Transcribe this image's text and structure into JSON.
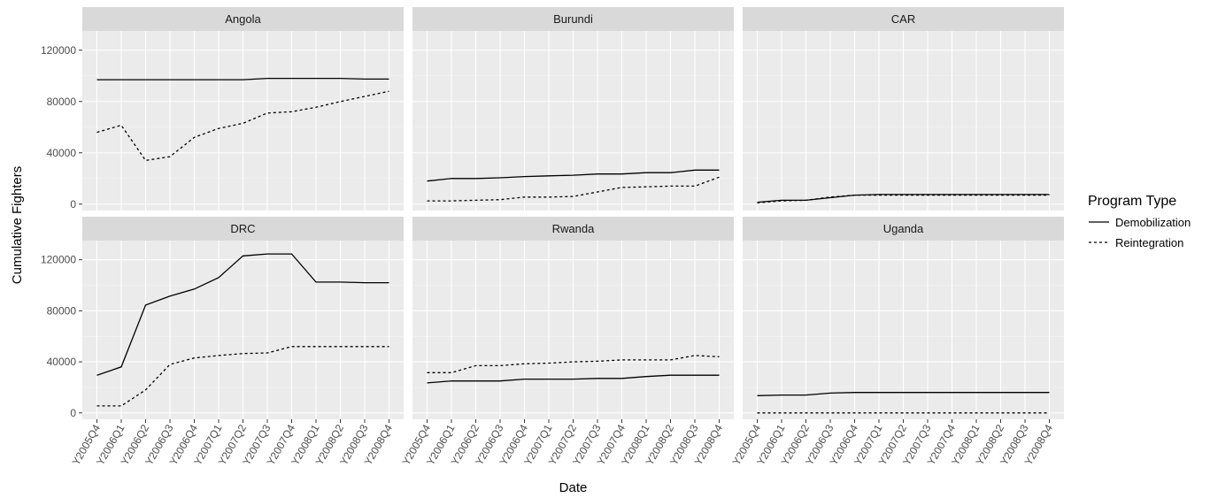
{
  "chart_data": {
    "type": "line",
    "xlabel": "Date",
    "ylabel": "Cumulative Fighters",
    "ylim": [
      -5000,
      135000
    ],
    "y_ticks": [
      0,
      40000,
      80000,
      120000
    ],
    "y_tick_labels": [
      "0",
      "40000",
      "80000",
      "120000"
    ],
    "categories": [
      "Y2005Q4",
      "Y2006Q1",
      "Y2006Q2",
      "Y2006Q3",
      "Y2006Q4",
      "Y2007Q1",
      "Y2007Q2",
      "Y2007Q3",
      "Y2007Q4",
      "Y2008Q1",
      "Y2008Q2",
      "Y2008Q3",
      "Y2008Q4"
    ],
    "grid": true,
    "legend": {
      "title": "Program Type",
      "position": "right",
      "entries": [
        {
          "name": "Demobilization",
          "linetype": "solid"
        },
        {
          "name": "Reintegration",
          "linetype": "dashed"
        }
      ]
    },
    "panels": [
      {
        "name": "Angola",
        "series": [
          {
            "name": "Demobilization",
            "values": [
              97000,
              97000,
              97000,
              97000,
              97000,
              97000,
              97000,
              98000,
              98000,
              98000,
              98000,
              97500,
              97500
            ]
          },
          {
            "name": "Reintegration",
            "values": [
              56000,
              61500,
              34000,
              37000,
              52000,
              59000,
              63000,
              71000,
              72000,
              75500,
              80000,
              84000,
              88000
            ]
          }
        ]
      },
      {
        "name": "Burundi",
        "series": [
          {
            "name": "Demobilization",
            "values": [
              18000,
              20000,
              20000,
              20500,
              21500,
              22000,
              22500,
              23500,
              23500,
              24500,
              24500,
              26500,
              26500
            ]
          },
          {
            "name": "Reintegration",
            "values": [
              2500,
              2500,
              3000,
              3500,
              5500,
              5500,
              6000,
              9500,
              13000,
              13500,
              14000,
              14000,
              21000
            ]
          }
        ]
      },
      {
        "name": "CAR",
        "series": [
          {
            "name": "Demobilization",
            "values": [
              1500,
              3000,
              3000,
              5000,
              7000,
              7500,
              7500,
              7500,
              7500,
              7500,
              7500,
              7500,
              7500
            ]
          },
          {
            "name": "Reintegration",
            "values": [
              1000,
              2500,
              3000,
              5500,
              7000,
              7000,
              7000,
              7000,
              7000,
              7000,
              7000,
              7000,
              7000
            ]
          }
        ]
      },
      {
        "name": "DRC",
        "series": [
          {
            "name": "Demobilization",
            "values": [
              29500,
              36000,
              84500,
              91500,
              97000,
              106000,
              123000,
              124500,
              124500,
              102500,
              102500,
              102000,
              102000
            ]
          },
          {
            "name": "Reintegration",
            "values": [
              5500,
              5500,
              18000,
              38000,
              43000,
              45000,
              46500,
              47000,
              52000,
              52000,
              52000,
              52000,
              52000
            ]
          }
        ]
      },
      {
        "name": "Rwanda",
        "series": [
          {
            "name": "Demobilization",
            "values": [
              23500,
              25000,
              25000,
              25000,
              26500,
              26500,
              26500,
              27000,
              27000,
              28500,
              29500,
              29500,
              29500
            ]
          },
          {
            "name": "Reintegration",
            "values": [
              31500,
              31500,
              37000,
              37000,
              38500,
              39000,
              40000,
              40500,
              41500,
              41500,
              41500,
              45000,
              44000
            ]
          }
        ]
      },
      {
        "name": "Uganda",
        "series": [
          {
            "name": "Demobilization",
            "values": [
              13500,
              14000,
              14000,
              15500,
              16000,
              16000,
              16000,
              16000,
              16000,
              16000,
              16000,
              16000,
              16000
            ]
          },
          {
            "name": "Reintegration",
            "values": [
              0,
              0,
              0,
              0,
              0,
              0,
              0,
              0,
              0,
              0,
              0,
              0,
              0
            ]
          }
        ]
      }
    ]
  }
}
